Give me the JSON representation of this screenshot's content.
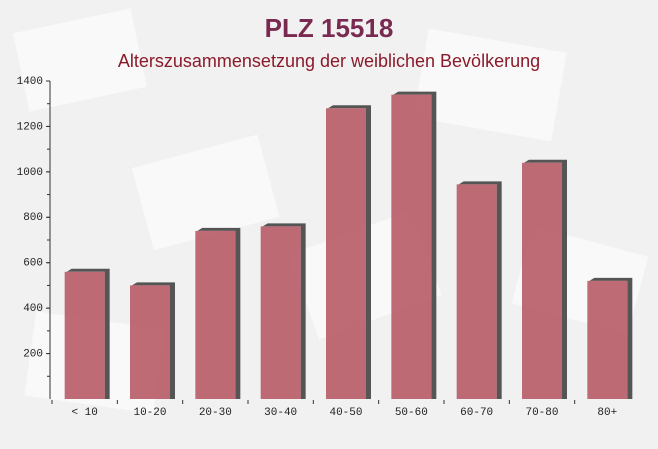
{
  "chart_data": {
    "type": "bar",
    "title": "PLZ 15518",
    "subtitle": "Alterszusammensetzung der weiblichen Bevölkerung",
    "categories": [
      "< 10",
      "10-20",
      "20-30",
      "30-40",
      "40-50",
      "50-60",
      "60-70",
      "70-80",
      "80+"
    ],
    "values": [
      560,
      500,
      740,
      760,
      1280,
      1340,
      945,
      1040,
      520
    ],
    "color": "#b5525f",
    "ylim": [
      0,
      1400
    ],
    "yticks": [
      200,
      400,
      600,
      800,
      1000,
      1200,
      1400
    ],
    "grid": false
  }
}
